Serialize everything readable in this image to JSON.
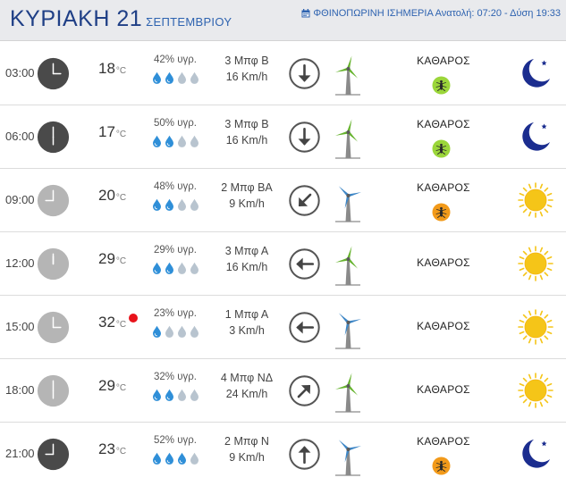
{
  "header": {
    "day": "ΚΥΡΙΑΚΗ 21",
    "month": "ΣΕΠΤΕΜΒΡΙΟΥ",
    "info": "ΦΘΙΝΟΠΩΡΙΝΗ ΙΣΗΜΕΡΙΑ Ανατολή: 07:20  - Δύση 19:33",
    "info_icon": "calendar-icon"
  },
  "temp_unit": "°C",
  "colors": {
    "title_blue": "#1f3f86",
    "accent_blue": "#2e63b0",
    "night_clock": "#4a4a4a",
    "day_clock": "#b5b5b5",
    "drop_filled": "#2f8fd8",
    "drop_empty": "#b8c4cf",
    "sun": "#f5c518",
    "moon": "#1b2d8f",
    "bug_green": "#9bd63a",
    "bug_orange": "#f29a1a",
    "hot_dot": "#e8131b"
  },
  "rows": [
    {
      "time": "03:00",
      "clock": "night",
      "hour": 3,
      "temp": "18",
      "hot": false,
      "humidity": "42% υγρ.",
      "drops": 2,
      "wind_bf": "3 Μπφ Β",
      "wind_kmh": "16 Km/h",
      "wind_dir": "down",
      "turbine": "green",
      "condition": "ΚΑΘΑΡΟΣ",
      "bug": "green",
      "sky": "moon"
    },
    {
      "time": "06:00",
      "clock": "night",
      "hour": 6,
      "temp": "17",
      "hot": false,
      "humidity": "50% υγρ.",
      "drops": 2,
      "wind_bf": "3 Μπφ Β",
      "wind_kmh": "16 Km/h",
      "wind_dir": "down",
      "turbine": "green",
      "condition": "ΚΑΘΑΡΟΣ",
      "bug": "green",
      "sky": "moon"
    },
    {
      "time": "09:00",
      "clock": "day",
      "hour": 9,
      "temp": "20",
      "hot": false,
      "humidity": "48% υγρ.",
      "drops": 2,
      "wind_bf": "2 Μπφ ΒΑ",
      "wind_kmh": "9 Km/h",
      "wind_dir": "down-left",
      "turbine": "blue",
      "condition": "ΚΑΘΑΡΟΣ",
      "bug": "orange",
      "sky": "sun"
    },
    {
      "time": "12:00",
      "clock": "day",
      "hour": 12,
      "temp": "29",
      "hot": false,
      "humidity": "29% υγρ.",
      "drops": 2,
      "wind_bf": "3 Μπφ Α",
      "wind_kmh": "16 Km/h",
      "wind_dir": "left",
      "turbine": "green",
      "condition": "ΚΑΘΑΡΟΣ",
      "bug": "",
      "sky": "sun"
    },
    {
      "time": "15:00",
      "clock": "day",
      "hour": 3,
      "temp": "32",
      "hot": true,
      "humidity": "23% υγρ.",
      "drops": 1,
      "wind_bf": "1 Μπφ Α",
      "wind_kmh": "3 Km/h",
      "wind_dir": "left",
      "turbine": "blue",
      "condition": "ΚΑΘΑΡΟΣ",
      "bug": "",
      "sky": "sun"
    },
    {
      "time": "18:00",
      "clock": "day",
      "hour": 6,
      "temp": "29",
      "hot": false,
      "humidity": "32% υγρ.",
      "drops": 2,
      "wind_bf": "4 Μπφ ΝΔ",
      "wind_kmh": "24 Km/h",
      "wind_dir": "up-right",
      "turbine": "green",
      "condition": "ΚΑΘΑΡΟΣ",
      "bug": "",
      "sky": "sun"
    },
    {
      "time": "21:00",
      "clock": "night",
      "hour": 9,
      "temp": "23",
      "hot": false,
      "humidity": "52% υγρ.",
      "drops": 3,
      "wind_bf": "2 Μπφ Ν",
      "wind_kmh": "9 Km/h",
      "wind_dir": "up",
      "turbine": "blue",
      "condition": "ΚΑΘΑΡΟΣ",
      "bug": "orange",
      "sky": "moon"
    }
  ]
}
